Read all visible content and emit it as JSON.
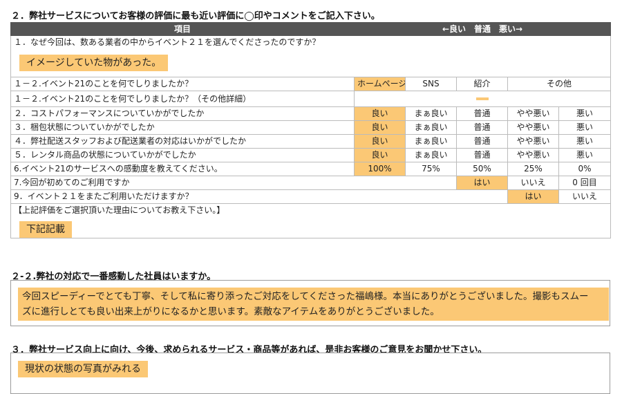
{
  "section2": {
    "heading": "２．弊社サービスについてお客様の評価に最も近い評価に◯印やコメントをご記入下さい。",
    "col_item": "項目",
    "col_scale": "←良い　普通　悪い→",
    "q1": {
      "label": "１．なぜ今回は、数ある業者の中からイベント２１を選んでくださったのですか？",
      "answer": "イメージしていた物があった。"
    },
    "q1_2": {
      "label": "１－２.イベント21のことを何でしりましたか？",
      "options": [
        "ホームページ",
        "SNS",
        "紹介",
        "その他"
      ]
    },
    "q1_2b": {
      "label": "１－２.イベント21のことを何でしりましたか？（その他詳細）"
    },
    "rating_rows": [
      {
        "label": "２．コストパフォーマンスについていかがでしたか",
        "options": [
          "良い",
          "まぁ良い",
          "普通",
          "やや悪い",
          "悪い"
        ]
      },
      {
        "label": "３．梱包状態についていかがでしたか",
        "options": [
          "良い",
          "まぁ良い",
          "普通",
          "やや悪い",
          "悪い"
        ]
      },
      {
        "label": "４．弊社配送スタッフおよび配送業者の対応はいかがでしたか",
        "options": [
          "良い",
          "まぁ良い",
          "普通",
          "やや悪い",
          "悪い"
        ]
      },
      {
        "label": "５．レンタル商品の状態についていかがでしたか",
        "options": [
          "良い",
          "まぁ良い",
          "普通",
          "やや悪い",
          "悪い"
        ]
      }
    ],
    "q6": {
      "label": "6.イベント21のサービスへの感動度を教えてください。",
      "options": [
        "100%",
        "75%",
        "50%",
        "25%",
        "0%"
      ]
    },
    "q7": {
      "label": "7.今回が初めてのご利用ですか",
      "options": [
        "はい",
        "いいえ",
        "0 回目"
      ]
    },
    "q9": {
      "label": "9．イベント２１をまたご利用いただけますか？",
      "options": [
        "はい",
        "いいえ"
      ]
    },
    "reason": {
      "label": "【上記評価をご選択頂いた理由についてお教え下さい。】",
      "answer": "下記記載"
    }
  },
  "section2_2": {
    "heading": "２-２.弊社の対応で一番感動した社員はいますか。",
    "answer_line1": "今回スピーディーでとても丁寧、そして私に寄り添ったご対応をしてくださった福嶋様。本当にありがとうございました。撮影もスムー",
    "answer_line2": "ズに進行しとても良い出来上がりになるかと思います。素敵なアイテムをありがとうございました。"
  },
  "section3": {
    "heading": "３．弊社サービス向上に向け、今後、求められるサービス・商品等があれば、是非お客様のご意見をお聞かせ下さい。",
    "answer": "現状の状態の写真がみれる"
  },
  "colors": {
    "highlight": "#fbc875",
    "header_bg": "#555555",
    "border": "#bbbbbb"
  }
}
